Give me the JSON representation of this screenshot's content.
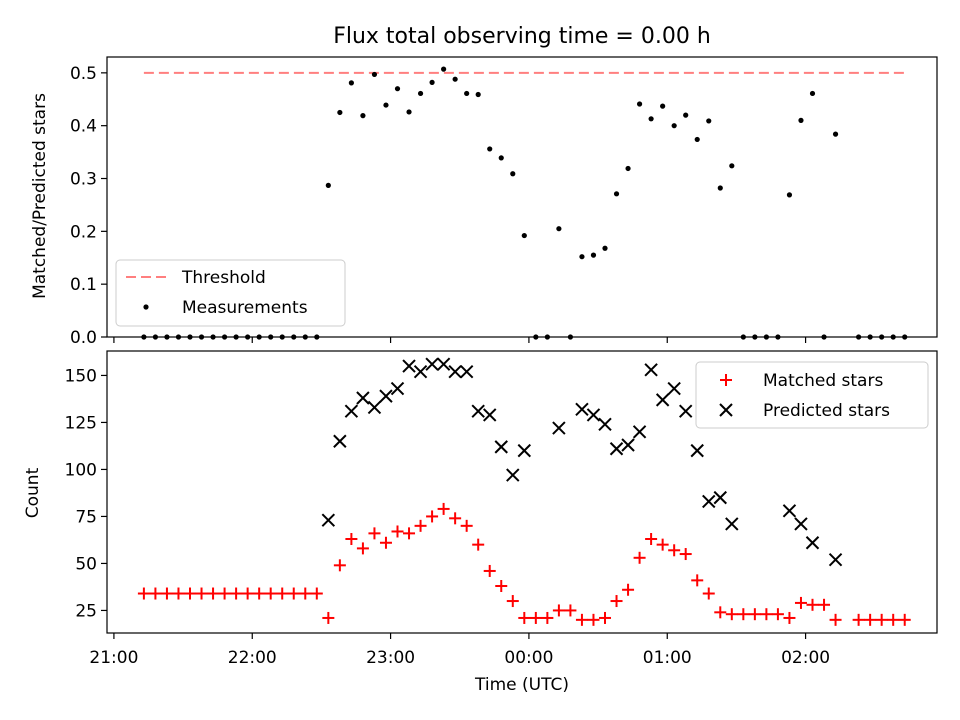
{
  "chart_data": [
    {
      "type": "scatter",
      "title": "Flux total observing time = 0.00 h",
      "xlabel": "",
      "ylabel": "Matched/Predicted stars",
      "x_unit": "time (UTC), hours since 21:00",
      "xlim": [
        "20:57",
        "02:57"
      ],
      "ylim": [
        0,
        0.53
      ],
      "yticks": [
        "0.0",
        "0.1",
        "0.2",
        "0.3",
        "0.4",
        "0.5"
      ],
      "legend": {
        "position": "lower-left",
        "entries": [
          "Threshold",
          "Measurements"
        ]
      },
      "threshold": {
        "name": "Threshold",
        "value": 0.5,
        "x_start": "21:13",
        "x_end": "02:43",
        "color": "#ff7f7f"
      },
      "series": [
        {
          "name": "Measurements",
          "color": "#000000",
          "points": [
            [
              "21:13",
              0
            ],
            [
              "21:18",
              0
            ],
            [
              "21:23",
              0
            ],
            [
              "21:28",
              0
            ],
            [
              "21:33",
              0
            ],
            [
              "21:38",
              0
            ],
            [
              "21:43",
              0
            ],
            [
              "21:48",
              0
            ],
            [
              "21:53",
              0
            ],
            [
              "21:58",
              0
            ],
            [
              "22:03",
              0
            ],
            [
              "22:08",
              0
            ],
            [
              "22:13",
              0
            ],
            [
              "22:18",
              0
            ],
            [
              "22:23",
              0
            ],
            [
              "22:28",
              0
            ],
            [
              "22:33",
              0.287
            ],
            [
              "22:38",
              0.425
            ],
            [
              "22:43",
              0.481
            ],
            [
              "22:48",
              0.419
            ],
            [
              "22:53",
              0.497
            ],
            [
              "22:58",
              0.439
            ],
            [
              "23:03",
              0.47
            ],
            [
              "23:08",
              0.426
            ],
            [
              "23:13",
              0.461
            ],
            [
              "23:18",
              0.482
            ],
            [
              "23:23",
              0.507
            ],
            [
              "23:28",
              0.488
            ],
            [
              "23:33",
              0.461
            ],
            [
              "23:38",
              0.459
            ],
            [
              "23:43",
              0.356
            ],
            [
              "23:48",
              0.339
            ],
            [
              "23:53",
              0.309
            ],
            [
              "23:58",
              0.192
            ],
            [
              "00:03",
              0
            ],
            [
              "00:08",
              0
            ],
            [
              "00:13",
              0.205
            ],
            [
              "00:18",
              0
            ],
            [
              "00:23",
              0.152
            ],
            [
              "00:28",
              0.155
            ],
            [
              "00:33",
              0.168
            ],
            [
              "00:38",
              0.271
            ],
            [
              "00:43",
              0.319
            ],
            [
              "00:48",
              0.441
            ],
            [
              "00:53",
              0.413
            ],
            [
              "00:58",
              0.437
            ],
            [
              "01:03",
              0.4
            ],
            [
              "01:08",
              0.42
            ],
            [
              "01:13",
              0.374
            ],
            [
              "01:18",
              0.409
            ],
            [
              "01:23",
              0.282
            ],
            [
              "01:28",
              0.324
            ],
            [
              "01:33",
              0
            ],
            [
              "01:38",
              0
            ],
            [
              "01:43",
              0
            ],
            [
              "01:48",
              0
            ],
            [
              "01:53",
              0.269
            ],
            [
              "01:58",
              0.41
            ],
            [
              "02:03",
              0.461
            ],
            [
              "02:08",
              0
            ],
            [
              "02:13",
              0.384
            ],
            [
              "02:23",
              0
            ],
            [
              "02:28",
              0
            ],
            [
              "02:33",
              0
            ],
            [
              "02:38",
              0
            ],
            [
              "02:43",
              0
            ]
          ]
        }
      ]
    },
    {
      "type": "scatter",
      "title": "",
      "xlabel": "Time (UTC)",
      "ylabel": "Count",
      "x_unit": "time (UTC), hours since 21:00",
      "xlim": [
        "20:57",
        "02:57"
      ],
      "ylim": [
        13,
        163
      ],
      "yticks": [
        "25",
        "50",
        "75",
        "100",
        "125",
        "150"
      ],
      "xticks": [
        "21:00",
        "22:00",
        "23:00",
        "00:00",
        "01:00",
        "02:00"
      ],
      "legend": {
        "position": "top-right",
        "entries": [
          "Matched stars",
          "Predicted stars"
        ]
      },
      "series": [
        {
          "name": "Matched stars",
          "marker": "plus",
          "color": "#ff0000",
          "points": [
            [
              "21:13",
              34
            ],
            [
              "21:18",
              34
            ],
            [
              "21:23",
              34
            ],
            [
              "21:28",
              34
            ],
            [
              "21:33",
              34
            ],
            [
              "21:38",
              34
            ],
            [
              "21:43",
              34
            ],
            [
              "21:48",
              34
            ],
            [
              "21:53",
              34
            ],
            [
              "21:58",
              34
            ],
            [
              "22:03",
              34
            ],
            [
              "22:08",
              34
            ],
            [
              "22:13",
              34
            ],
            [
              "22:18",
              34
            ],
            [
              "22:23",
              34
            ],
            [
              "22:28",
              34
            ],
            [
              "22:33",
              21
            ],
            [
              "22:38",
              49
            ],
            [
              "22:43",
              63
            ],
            [
              "22:48",
              58
            ],
            [
              "22:53",
              66
            ],
            [
              "22:58",
              61
            ],
            [
              "23:03",
              67
            ],
            [
              "23:08",
              66
            ],
            [
              "23:13",
              70
            ],
            [
              "23:18",
              75
            ],
            [
              "23:23",
              79
            ],
            [
              "23:28",
              74
            ],
            [
              "23:33",
              70
            ],
            [
              "23:38",
              60
            ],
            [
              "23:43",
              46
            ],
            [
              "23:48",
              38
            ],
            [
              "23:53",
              30
            ],
            [
              "23:58",
              21
            ],
            [
              "00:03",
              21
            ],
            [
              "00:08",
              21
            ],
            [
              "00:13",
              25
            ],
            [
              "00:18",
              25
            ],
            [
              "00:23",
              20
            ],
            [
              "00:28",
              20
            ],
            [
              "00:33",
              21
            ],
            [
              "00:38",
              30
            ],
            [
              "00:43",
              36
            ],
            [
              "00:48",
              53
            ],
            [
              "00:53",
              63
            ],
            [
              "00:58",
              60
            ],
            [
              "01:03",
              57
            ],
            [
              "01:08",
              55
            ],
            [
              "01:13",
              41
            ],
            [
              "01:18",
              34
            ],
            [
              "01:23",
              24
            ],
            [
              "01:28",
              23
            ],
            [
              "01:33",
              23
            ],
            [
              "01:38",
              23
            ],
            [
              "01:43",
              23
            ],
            [
              "01:48",
              23
            ],
            [
              "01:53",
              21
            ],
            [
              "01:58",
              29
            ],
            [
              "02:03",
              28
            ],
            [
              "02:08",
              28
            ],
            [
              "02:13",
              20
            ],
            [
              "02:23",
              20
            ],
            [
              "02:28",
              20
            ],
            [
              "02:33",
              20
            ],
            [
              "02:38",
              20
            ],
            [
              "02:43",
              20
            ]
          ]
        },
        {
          "name": "Predicted stars",
          "marker": "x",
          "color": "#000000",
          "points": [
            [
              "22:33",
              73
            ],
            [
              "22:38",
              115
            ],
            [
              "22:43",
              131
            ],
            [
              "22:48",
              138
            ],
            [
              "22:53",
              133
            ],
            [
              "22:58",
              139
            ],
            [
              "23:03",
              143
            ],
            [
              "23:08",
              155
            ],
            [
              "23:13",
              152
            ],
            [
              "23:18",
              156
            ],
            [
              "23:23",
              156
            ],
            [
              "23:28",
              152
            ],
            [
              "23:33",
              152
            ],
            [
              "23:38",
              131
            ],
            [
              "23:43",
              129
            ],
            [
              "23:48",
              112
            ],
            [
              "23:53",
              97
            ],
            [
              "23:58",
              110
            ],
            [
              "00:13",
              122
            ],
            [
              "00:23",
              132
            ],
            [
              "00:28",
              129
            ],
            [
              "00:33",
              124
            ],
            [
              "00:38",
              111
            ],
            [
              "00:43",
              113
            ],
            [
              "00:48",
              120
            ],
            [
              "00:53",
              153
            ],
            [
              "00:58",
              137
            ],
            [
              "01:03",
              143
            ],
            [
              "01:08",
              131
            ],
            [
              "01:13",
              110
            ],
            [
              "01:18",
              83
            ],
            [
              "01:23",
              85
            ],
            [
              "01:28",
              71
            ],
            [
              "01:53",
              78
            ],
            [
              "01:58",
              71
            ],
            [
              "02:03",
              61
            ],
            [
              "02:13",
              52
            ]
          ]
        }
      ]
    }
  ]
}
